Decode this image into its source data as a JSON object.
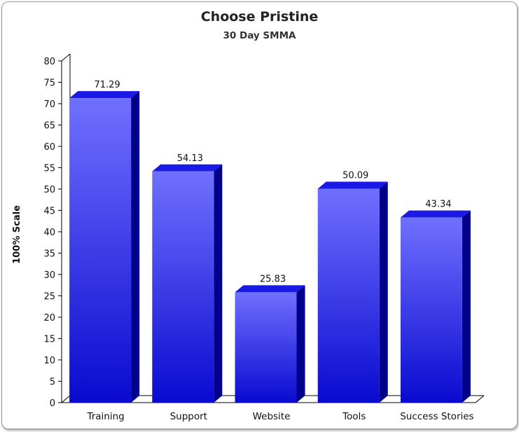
{
  "chart_data": {
    "type": "bar",
    "title": "Choose Pristine",
    "subtitle": "30 Day SMMA",
    "xlabel": "",
    "ylabel": "100% Scale",
    "categories": [
      "Training",
      "Support",
      "Website",
      "Tools",
      "Success Stories"
    ],
    "values": [
      71.29,
      54.13,
      25.83,
      50.09,
      43.34
    ],
    "value_labels": [
      "71.29",
      "54.13",
      "25.83",
      "50.09",
      "43.34"
    ],
    "ylim": [
      0,
      80
    ],
    "yticks": [
      0,
      5,
      10,
      15,
      20,
      25,
      30,
      35,
      40,
      45,
      50,
      55,
      60,
      65,
      70,
      75,
      80
    ],
    "bar_color_top": "#7070ff",
    "bar_color_bottom": "#0a0ad0",
    "bar_side_color": "#00008a",
    "bar_cap_color": "#1a1ae6",
    "grid": false,
    "legend": "none",
    "style": "3d-bar"
  }
}
